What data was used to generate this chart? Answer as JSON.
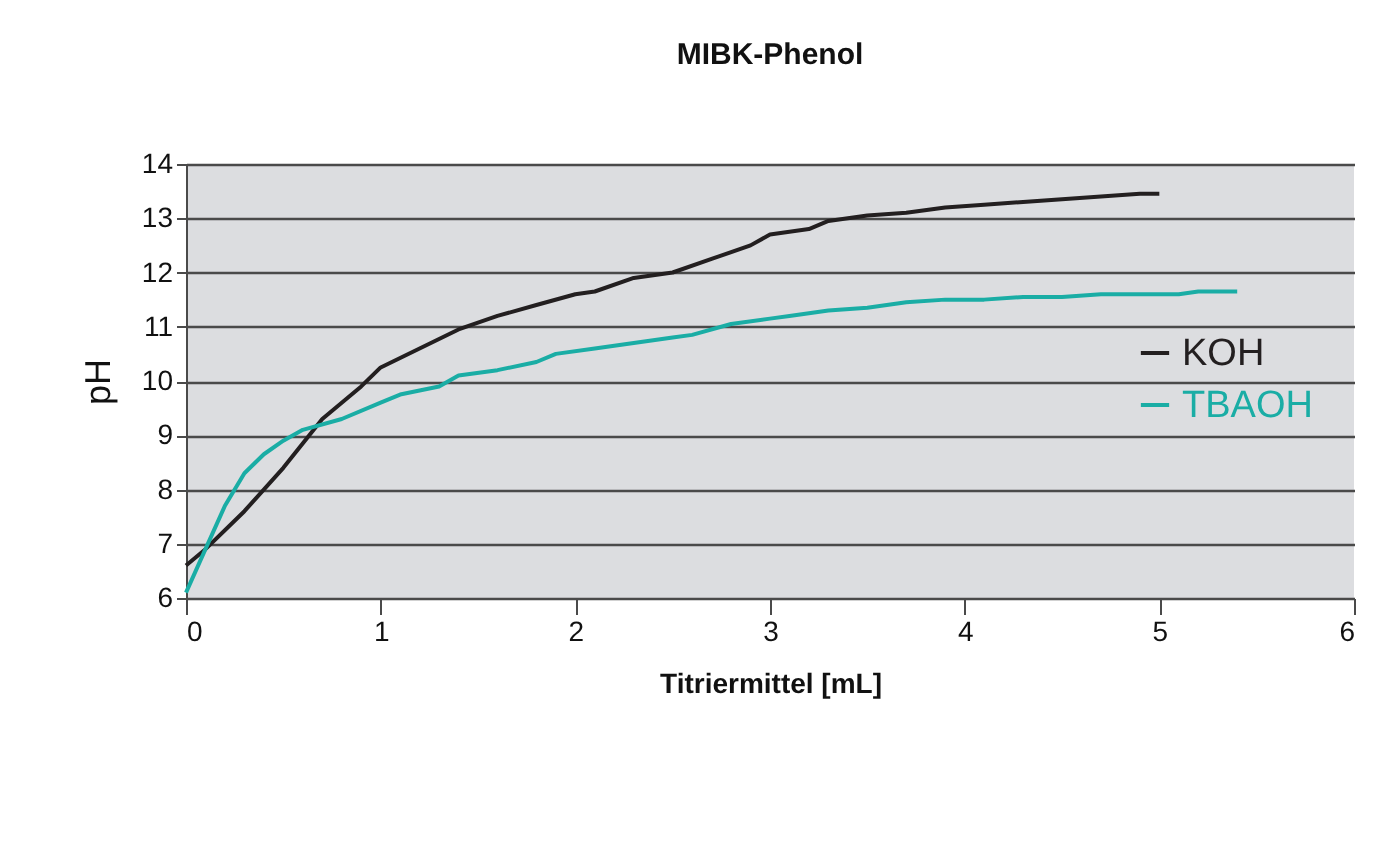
{
  "chart_data": {
    "type": "line",
    "title": "MIBK-Phenol",
    "xlabel": "Titriermittel [mL]",
    "ylabel": "pH",
    "xlim": [
      0,
      6
    ],
    "xticks": [
      0,
      1,
      2,
      3,
      4,
      5,
      6
    ],
    "ylim": [
      6,
      14
    ],
    "yticks": [
      6,
      7,
      8,
      9,
      10,
      11,
      12,
      13,
      14
    ],
    "grid": "y",
    "legend": "right",
    "marker": "none",
    "line_style": "solid",
    "series": [
      {
        "name": "KOH",
        "color": "#231f20",
        "x": [
          0,
          0.1,
          0.3,
          0.5,
          0.7,
          0.9,
          1,
          1.2,
          1.4,
          1.6,
          1.8,
          2,
          2.1,
          2.3,
          2.5,
          2.7,
          2.9,
          3,
          3.2,
          3.3,
          3.5,
          3.7,
          3.9,
          4.1,
          4.3,
          4.5,
          4.7,
          4.9,
          5
        ],
        "values": [
          6.6,
          6.9,
          7.6,
          8.4,
          9.3,
          9.9,
          10.25,
          10.6,
          10.95,
          11.2,
          11.4,
          11.6,
          11.65,
          11.9,
          12,
          12.25,
          12.5,
          12.7,
          12.8,
          12.95,
          13.05,
          13.1,
          13.2,
          13.25,
          13.3,
          13.35,
          13.4,
          13.45,
          13.45
        ]
      },
      {
        "name": "TBAOH",
        "color": "#1aada5",
        "x": [
          0,
          0.1,
          0.2,
          0.3,
          0.4,
          0.5,
          0.6,
          0.8,
          1,
          1.1,
          1.3,
          1.4,
          1.6,
          1.8,
          1.9,
          2.1,
          2.3,
          2.5,
          2.6,
          2.8,
          3,
          3.1,
          3.3,
          3.5,
          3.7,
          3.9,
          4.1,
          4.3,
          4.5,
          4.7,
          5.1,
          5.2,
          5.4
        ],
        "values": [
          6.1,
          6.9,
          7.7,
          8.3,
          8.65,
          8.9,
          9.1,
          9.3,
          9.6,
          9.75,
          9.9,
          10.1,
          10.2,
          10.35,
          10.5,
          10.6,
          10.7,
          10.8,
          10.85,
          11.05,
          11.15,
          11.2,
          11.3,
          11.35,
          11.45,
          11.5,
          11.5,
          11.55,
          11.55,
          11.6,
          11.6,
          11.65,
          11.65
        ]
      }
    ]
  }
}
